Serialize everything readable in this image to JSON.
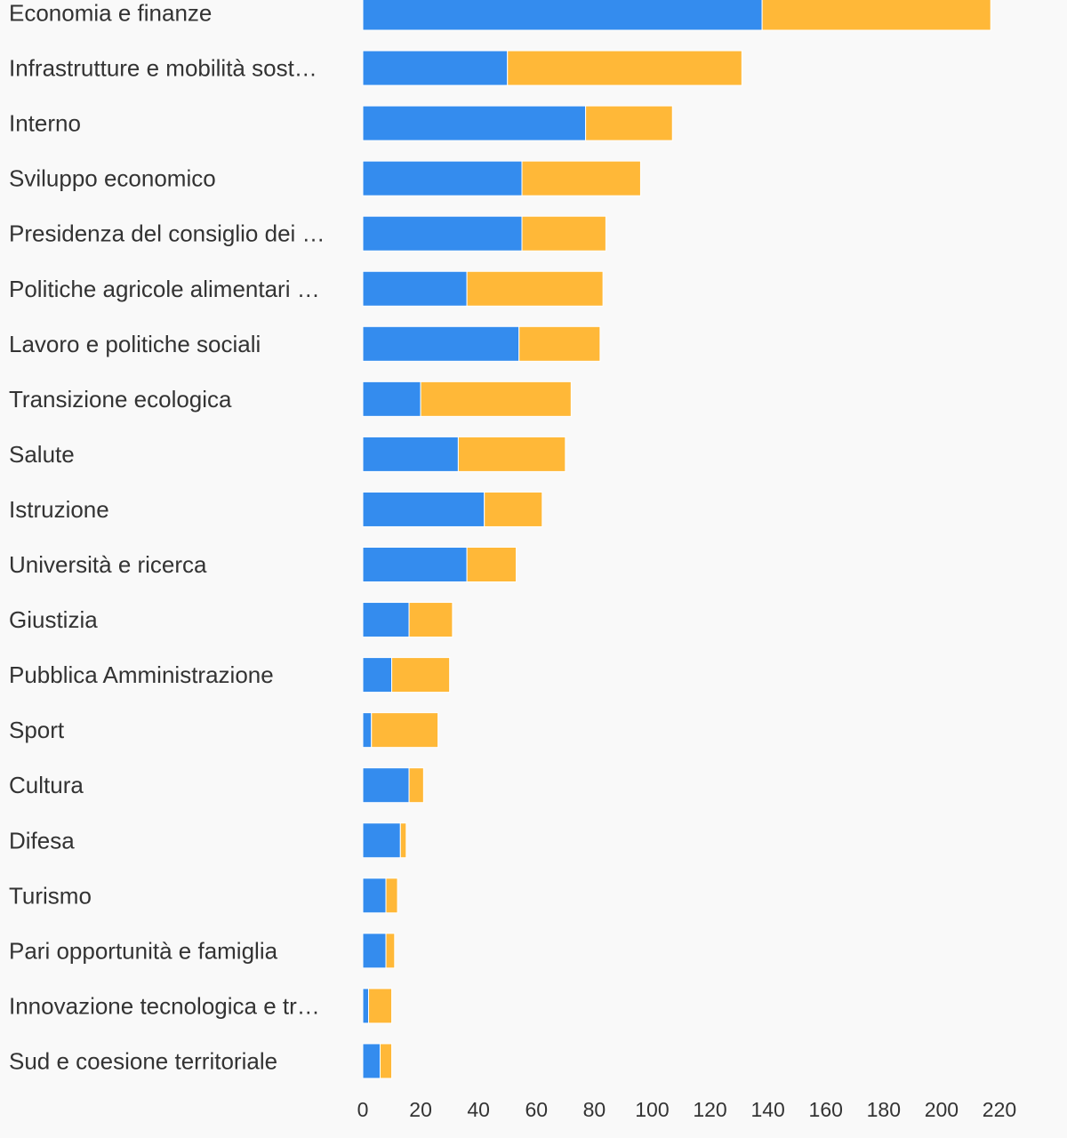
{
  "chart_data": {
    "type": "bar",
    "orientation": "horizontal",
    "stacked": true,
    "categories": [
      "Economia e finanze",
      "Infrastrutture e mobilità sost…",
      "Interno",
      "Sviluppo economico",
      "Presidenza del consiglio dei …",
      "Politiche agricole alimentari …",
      "Lavoro e politiche sociali",
      "Transizione ecologica",
      "Salute",
      "Istruzione",
      "Università e ricerca",
      "Giustizia",
      "Pubblica Amministrazione",
      "Sport",
      "Cultura",
      "Difesa",
      "Turismo",
      "Pari opportunità e famiglia",
      "Innovazione tecnologica e tr…",
      "Sud e coesione territoriale"
    ],
    "series": [
      {
        "color": "#348cee",
        "values": [
          138,
          50,
          77,
          55,
          55,
          36,
          54,
          20,
          33,
          42,
          36,
          16,
          10,
          3,
          16,
          13,
          8,
          8,
          2,
          6
        ]
      },
      {
        "color": "#ffb838",
        "values": [
          79,
          81,
          30,
          41,
          29,
          47,
          28,
          52,
          37,
          20,
          17,
          15,
          20,
          23,
          5,
          2,
          4,
          3,
          8,
          4
        ]
      }
    ],
    "x_ticks": [
      "0",
      "20",
      "40",
      "60",
      "80",
      "100",
      "120",
      "140",
      "160",
      "180",
      "200",
      "220"
    ],
    "xlim": [
      0,
      220
    ],
    "grid": false,
    "legend": "none",
    "title": "",
    "xlabel": "",
    "ylabel": ""
  }
}
